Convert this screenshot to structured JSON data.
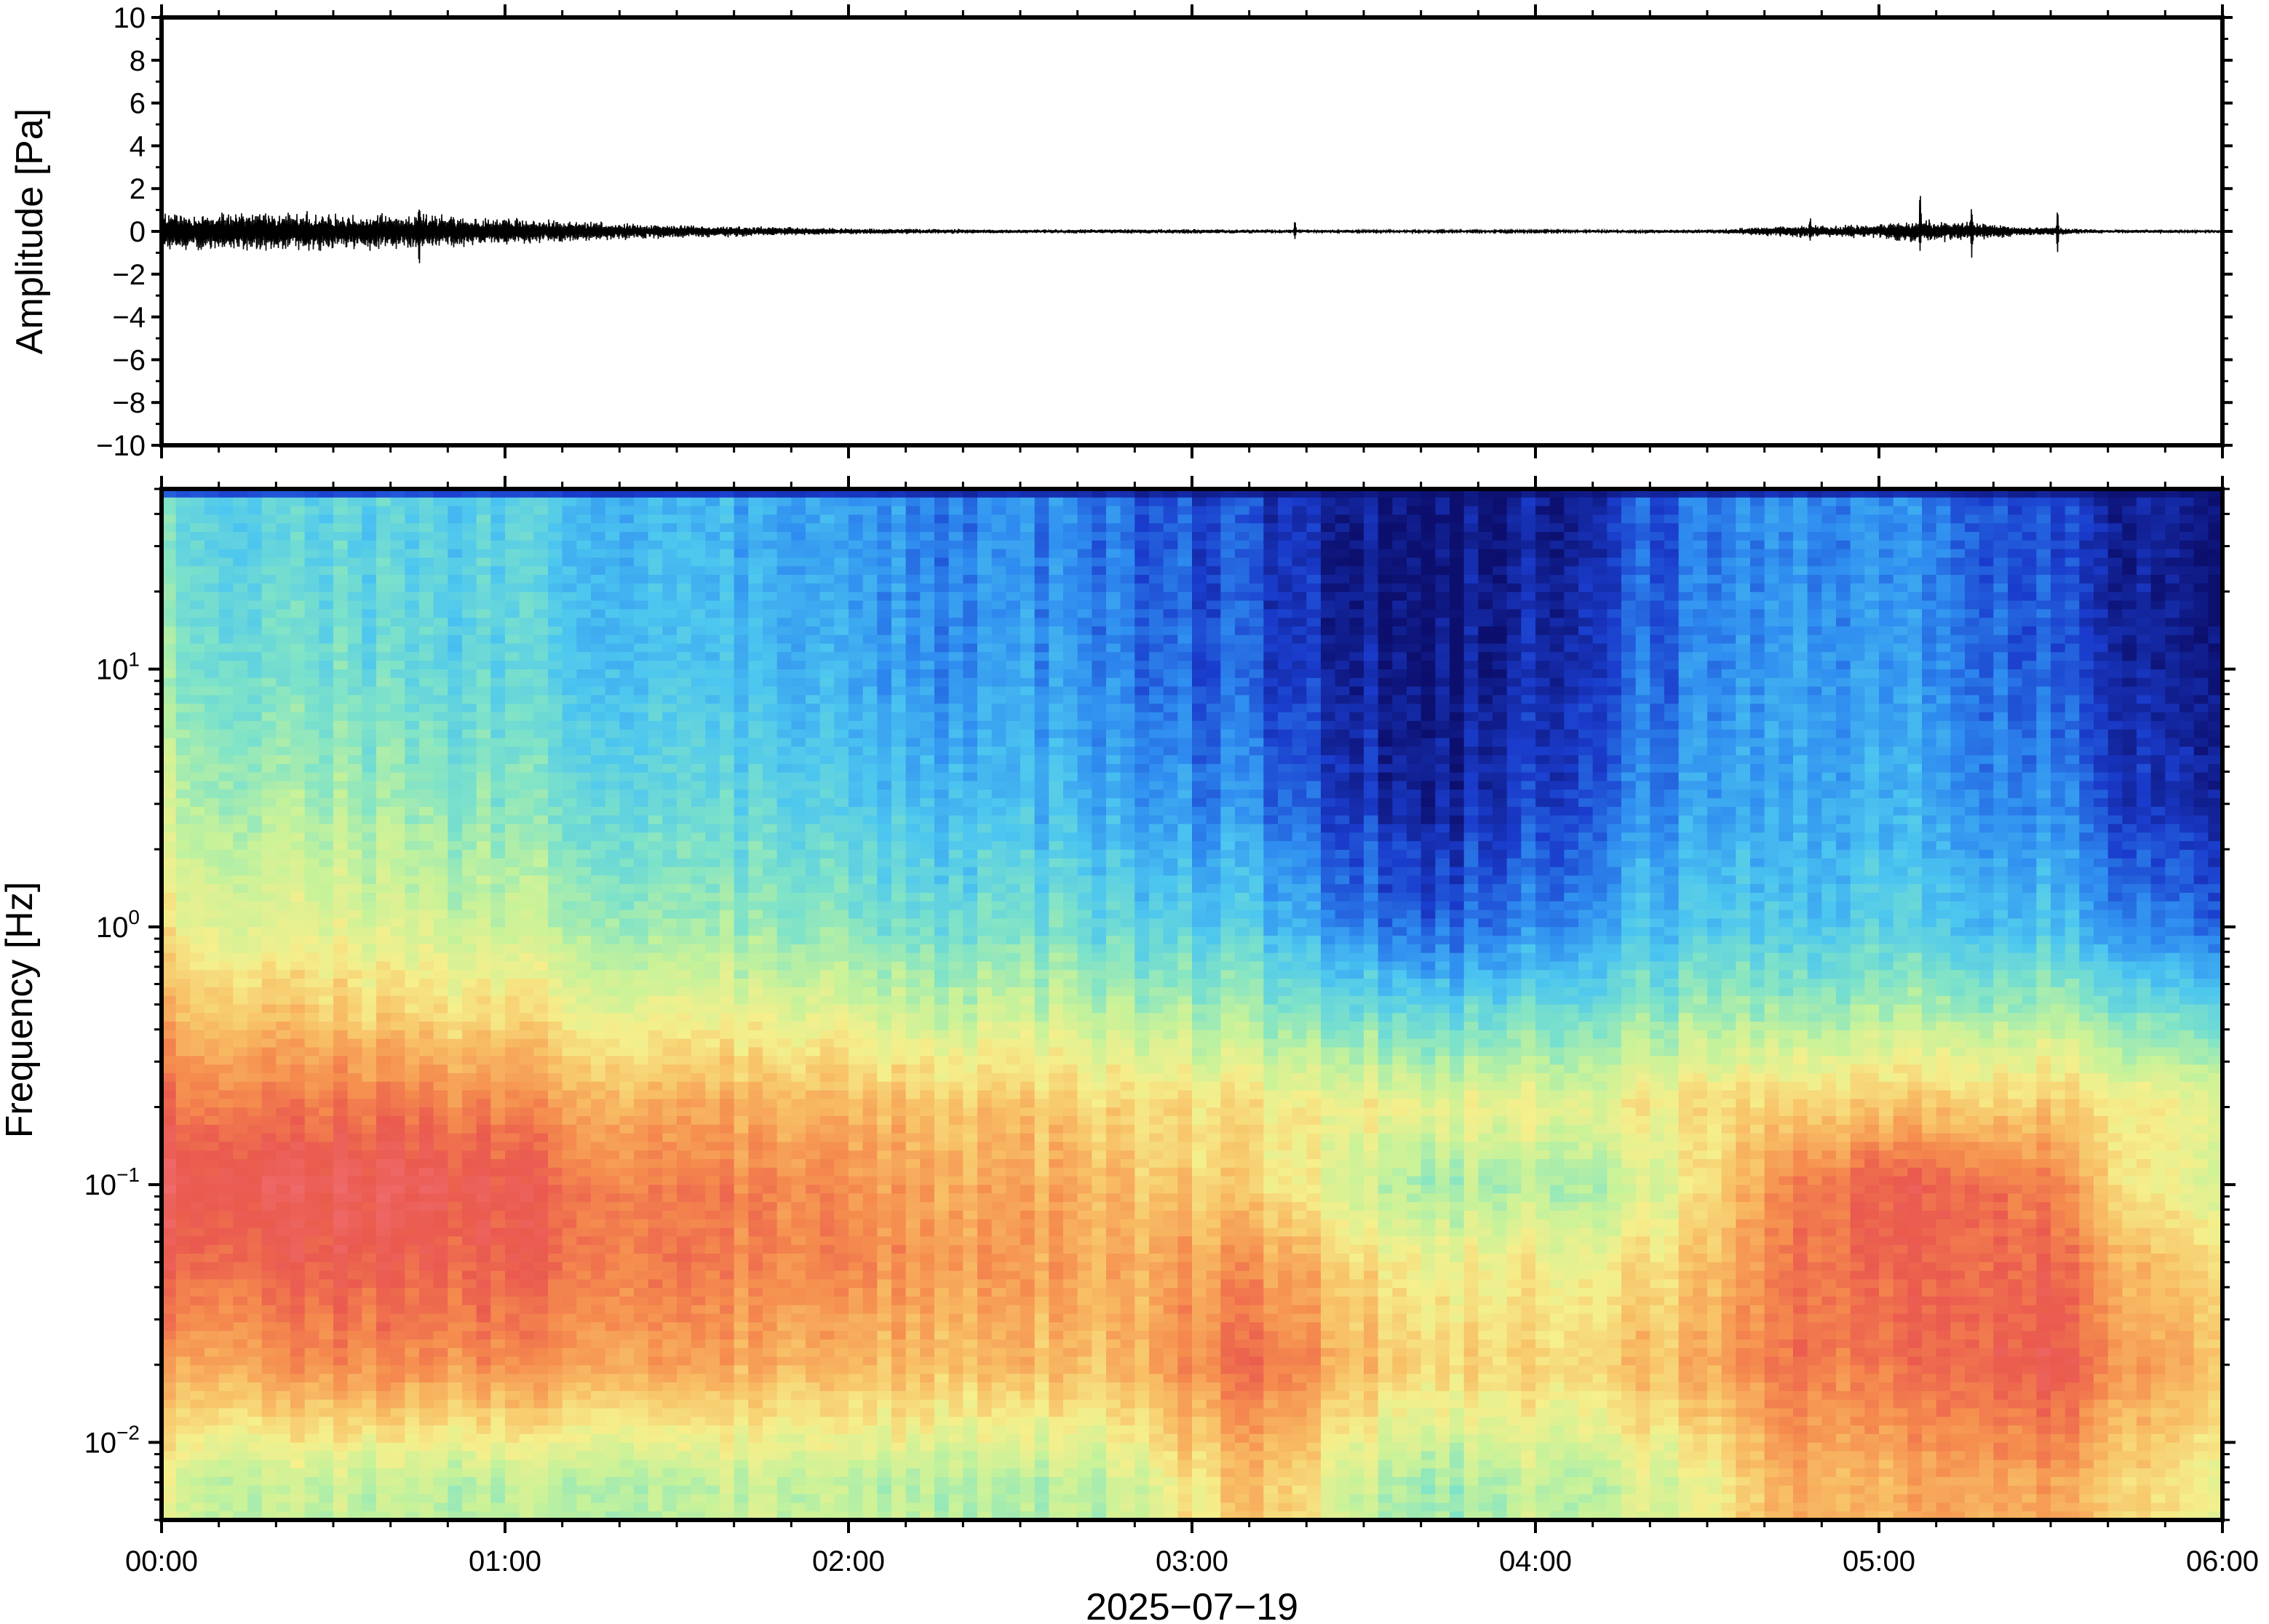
{
  "chart_data": [
    {
      "type": "line",
      "panel": "waveform",
      "ylabel": "Amplitude [Pa]",
      "ylim": [
        -10,
        10
      ],
      "yticks": [
        {
          "value": 10,
          "label": "10"
        },
        {
          "value": 8,
          "label": "8"
        },
        {
          "value": 6,
          "label": "6"
        },
        {
          "value": 4,
          "label": "4"
        },
        {
          "value": 2,
          "label": "2"
        },
        {
          "value": 0,
          "label": "0"
        },
        {
          "value": -2,
          "label": "−2"
        },
        {
          "value": -4,
          "label": "−4"
        },
        {
          "value": -6,
          "label": "−6"
        },
        {
          "value": -8,
          "label": "−8"
        },
        {
          "value": -10,
          "label": "−10"
        }
      ],
      "xlim": [
        "00:00",
        "06:00"
      ],
      "line_color": "#000000",
      "envelope": {
        "description_times_hours": [
          0,
          0.25,
          0.5,
          0.75,
          1.0,
          1.25,
          1.5,
          1.75,
          2.0,
          2.5,
          3.0,
          3.25,
          3.5,
          4.0,
          4.5,
          4.75,
          5.0,
          5.1,
          5.25,
          5.4,
          5.5,
          5.6,
          6.0
        ],
        "amplitude_pa": [
          1.0,
          1.0,
          0.95,
          0.9,
          0.7,
          0.5,
          0.35,
          0.25,
          0.15,
          0.1,
          0.12,
          0.1,
          0.08,
          0.06,
          0.1,
          0.3,
          0.35,
          0.6,
          0.5,
          0.25,
          0.25,
          0.1,
          0.08
        ]
      },
      "events": [
        {
          "time_hours": 0.75,
          "peak_pa": 1.6,
          "trough_pa": -2.0
        },
        {
          "time_hours": 3.3,
          "peak_pa": 0.6,
          "trough_pa": -0.4
        },
        {
          "time_hours": 4.8,
          "peak_pa": 0.8,
          "trough_pa": -0.6
        },
        {
          "time_hours": 5.12,
          "peak_pa": 2.6,
          "trough_pa": -1.2
        },
        {
          "time_hours": 5.27,
          "peak_pa": 1.4,
          "trough_pa": -1.4
        },
        {
          "time_hours": 5.52,
          "peak_pa": 1.3,
          "trough_pa": -1.6
        }
      ]
    },
    {
      "type": "heatmap",
      "panel": "spectrogram",
      "ylabel": "Frequency [Hz]",
      "yscale": "log",
      "ylim_hz": [
        0.005,
        50
      ],
      "yticks": [
        {
          "value": 0.01,
          "base": "10",
          "exp": "−2"
        },
        {
          "value": 0.1,
          "base": "10",
          "exp": "−1"
        },
        {
          "value": 1,
          "base": "10",
          "exp": "0"
        },
        {
          "value": 10,
          "base": "10",
          "exp": "1"
        }
      ],
      "xlim": [
        "00:00",
        "06:00"
      ],
      "xticks": [
        "00:00",
        "01:00",
        "02:00",
        "03:00",
        "04:00",
        "05:00",
        "06:00"
      ],
      "xlabel": "2025−07−19",
      "colormap": [
        "#0c0f6e",
        "#1a3ccc",
        "#2f8df0",
        "#4cc6f0",
        "#7fe3c8",
        "#c6f29a",
        "#f5ef8c",
        "#f8c066",
        "#f58c4e",
        "#ea5a4e",
        "#ef6a6a"
      ],
      "column_times_hours": [
        0.0,
        0.25,
        0.5,
        0.75,
        1.0,
        1.25,
        1.5,
        1.75,
        2.0,
        2.25,
        2.5,
        2.75,
        3.0,
        3.25,
        3.5,
        3.75,
        4.0,
        4.25,
        4.5,
        4.75,
        5.0,
        5.25,
        5.5,
        5.75,
        6.0
      ],
      "band_freqs_hz": [
        0.007,
        0.02,
        0.05,
        0.1,
        0.2,
        0.5,
        1,
        3,
        10,
        30
      ],
      "level_profile_01": [
        [
          0.55,
          0.75,
          0.88,
          0.95,
          0.85,
          0.7,
          0.6,
          0.5,
          0.42,
          0.38
        ],
        [
          0.52,
          0.78,
          0.9,
          0.96,
          0.86,
          0.7,
          0.58,
          0.48,
          0.4,
          0.36
        ],
        [
          0.5,
          0.8,
          0.9,
          0.95,
          0.84,
          0.66,
          0.56,
          0.46,
          0.38,
          0.34
        ],
        [
          0.5,
          0.8,
          0.9,
          0.96,
          0.84,
          0.64,
          0.54,
          0.44,
          0.36,
          0.34
        ],
        [
          0.48,
          0.78,
          0.88,
          0.9,
          0.8,
          0.62,
          0.5,
          0.4,
          0.34,
          0.32
        ],
        [
          0.5,
          0.78,
          0.86,
          0.86,
          0.76,
          0.58,
          0.48,
          0.38,
          0.32,
          0.3
        ],
        [
          0.48,
          0.76,
          0.84,
          0.82,
          0.74,
          0.56,
          0.44,
          0.36,
          0.3,
          0.28
        ],
        [
          0.5,
          0.72,
          0.8,
          0.8,
          0.72,
          0.54,
          0.42,
          0.34,
          0.26,
          0.24
        ],
        [
          0.48,
          0.7,
          0.8,
          0.78,
          0.7,
          0.52,
          0.4,
          0.3,
          0.24,
          0.22
        ],
        [
          0.5,
          0.72,
          0.78,
          0.76,
          0.7,
          0.5,
          0.38,
          0.3,
          0.22,
          0.2
        ],
        [
          0.46,
          0.7,
          0.76,
          0.74,
          0.68,
          0.5,
          0.38,
          0.28,
          0.22,
          0.2
        ],
        [
          0.5,
          0.7,
          0.74,
          0.72,
          0.66,
          0.48,
          0.36,
          0.26,
          0.2,
          0.18
        ],
        [
          0.62,
          0.8,
          0.76,
          0.66,
          0.64,
          0.44,
          0.32,
          0.2,
          0.14,
          0.12
        ],
        [
          0.7,
          0.86,
          0.78,
          0.64,
          0.62,
          0.42,
          0.3,
          0.18,
          0.12,
          0.1
        ],
        [
          0.5,
          0.7,
          0.64,
          0.5,
          0.6,
          0.36,
          0.18,
          0.08,
          0.04,
          0.03
        ],
        [
          0.46,
          0.66,
          0.6,
          0.46,
          0.58,
          0.34,
          0.16,
          0.06,
          0.03,
          0.02
        ],
        [
          0.5,
          0.66,
          0.6,
          0.48,
          0.58,
          0.36,
          0.2,
          0.1,
          0.06,
          0.04
        ],
        [
          0.52,
          0.7,
          0.62,
          0.5,
          0.6,
          0.4,
          0.28,
          0.18,
          0.14,
          0.12
        ],
        [
          0.56,
          0.72,
          0.68,
          0.6,
          0.62,
          0.42,
          0.3,
          0.22,
          0.18,
          0.16
        ],
        [
          0.76,
          0.86,
          0.86,
          0.84,
          0.68,
          0.44,
          0.32,
          0.26,
          0.24,
          0.22
        ],
        [
          0.72,
          0.84,
          0.88,
          0.9,
          0.7,
          0.46,
          0.34,
          0.28,
          0.24,
          0.22
        ],
        [
          0.78,
          0.9,
          0.9,
          0.9,
          0.7,
          0.46,
          0.32,
          0.24,
          0.2,
          0.18
        ],
        [
          0.74,
          0.9,
          0.86,
          0.8,
          0.66,
          0.44,
          0.28,
          0.18,
          0.12,
          0.1
        ],
        [
          0.66,
          0.78,
          0.72,
          0.62,
          0.62,
          0.38,
          0.2,
          0.1,
          0.06,
          0.05
        ],
        [
          0.6,
          0.72,
          0.68,
          0.56,
          0.6,
          0.36,
          0.18,
          0.08,
          0.05,
          0.04
        ]
      ]
    }
  ]
}
